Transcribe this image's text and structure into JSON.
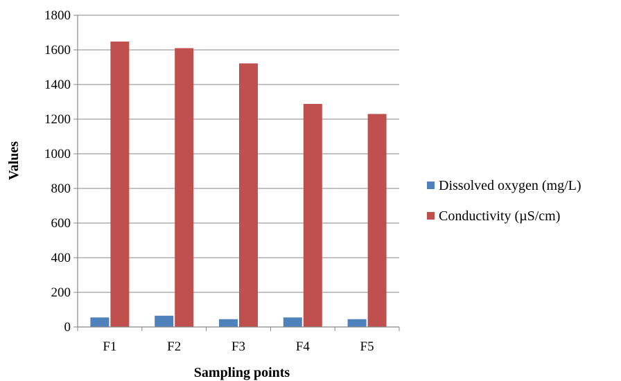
{
  "chart_data": {
    "type": "bar",
    "categories": [
      "F1",
      "F2",
      "F3",
      "F4",
      "F5"
    ],
    "series": [
      {
        "name": "Dissolved oxygen (mg/L)",
        "values": [
          55,
          65,
          45,
          55,
          45
        ],
        "color": "#4f81bd"
      },
      {
        "name": "Conductivity (µS/cm)",
        "values": [
          1648,
          1610,
          1522,
          1288,
          1230
        ],
        "color": "#c0504d"
      }
    ],
    "xlabel": "Sampling points",
    "ylabel": "Values",
    "ylim": [
      0,
      1800
    ],
    "yticks": [
      0,
      200,
      400,
      600,
      800,
      1000,
      1200,
      1400,
      1600,
      1800
    ],
    "ytick_labels": [
      "0",
      "200",
      "400",
      "600",
      "800",
      "1000",
      "1200",
      "1400",
      "1600",
      "1800"
    ],
    "grid": true,
    "legend_position": "right"
  }
}
